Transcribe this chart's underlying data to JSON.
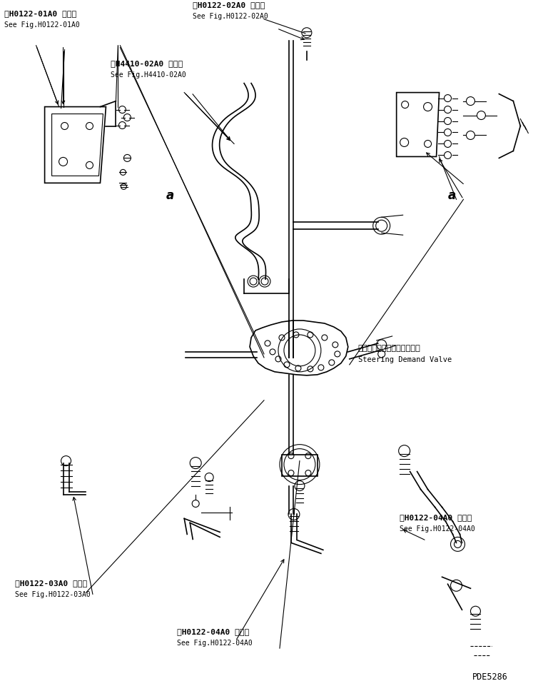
{
  "bg_color": "#ffffff",
  "line_color": "#000000",
  "figsize": [
    7.54,
    9.61
  ],
  "dpi": 100,
  "title_bottom_right": "PDE5286",
  "labels": {
    "top_left_jp": "第H0122-01A0 図参照",
    "top_left_en": "See Fig.H0122-01A0",
    "top_center_jp": "第H0122-02A0 図参照",
    "top_center_en": "See Fig.H0122-02A0",
    "center_left_jp": "第H4410-02A0 図参照",
    "center_left_en": "See Fig.H4410-02A0",
    "valve_jp": "ステアリングデマンドバルブ",
    "valve_en": "Steering Demand Valve",
    "bottom_left_jp": "第H0122-03A0 図参照",
    "bottom_left_en": "See Fig.H0122-03A0",
    "bottom_center_jp": "第H0122-04A0 図参照",
    "bottom_center_en": "See Fig.H0122-04A0",
    "bottom_right_jp": "第H0122-04A0 図参照",
    "bottom_right_en": "See Fig.H0122-04A0"
  }
}
